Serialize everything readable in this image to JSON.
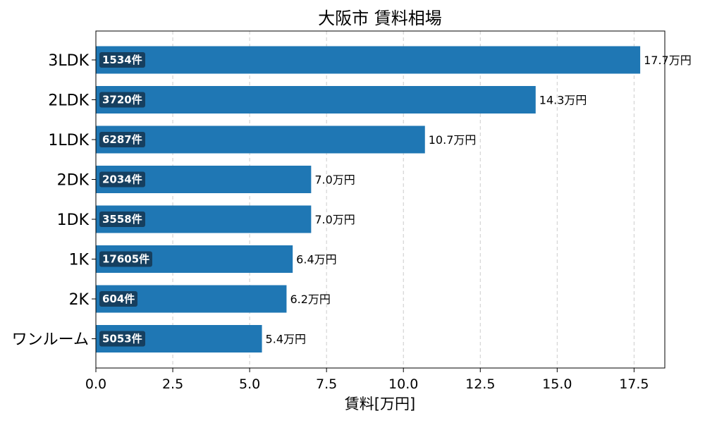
{
  "chart_data": {
    "type": "bar",
    "orientation": "horizontal",
    "title": "大阪市 賃料相場",
    "xlabel": "賃料[万円]",
    "ylabel": "",
    "xlim": [
      0,
      18.5
    ],
    "xticks": [
      0,
      2.5,
      5,
      7.5,
      10,
      12.5,
      15,
      17.5
    ],
    "xtick_labels": [
      "0.0",
      "2.5",
      "5.0",
      "7.5",
      "10.0",
      "12.5",
      "15.0",
      "17.5"
    ],
    "grid": "x-dashed",
    "bar_color": "#1f77b4",
    "badge_color": "#163f5f",
    "categories": [
      "3LDK",
      "2LDK",
      "1LDK",
      "2DK",
      "1DK",
      "1K",
      "2K",
      "ワンルーム"
    ],
    "values": [
      17.7,
      14.3,
      10.7,
      7.0,
      7.0,
      6.4,
      6.2,
      5.4
    ],
    "value_labels": [
      "17.7万円",
      "14.3万円",
      "10.7万円",
      "7.0万円",
      "7.0万円",
      "6.4万円",
      "6.2万円",
      "5.4万円"
    ],
    "count_labels": [
      "1534件",
      "3720件",
      "6287件",
      "2034件",
      "3558件",
      "17605件",
      "604件",
      "5053件"
    ]
  }
}
